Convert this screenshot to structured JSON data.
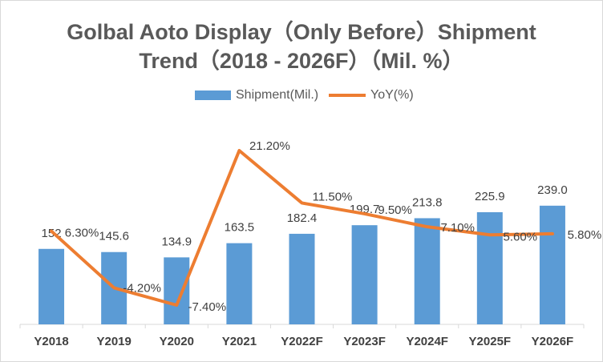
{
  "title_line1": "Golbal Aoto Display（Only Before）Shipment",
  "title_line2": "Trend（2018 - 2026F）（Mil. %）",
  "chart_data": {
    "type": "bar",
    "categories": [
      "Y2018",
      "Y2019",
      "Y2020",
      "Y2021",
      "Y2022F",
      "Y2023F",
      "Y2024F",
      "Y2025F",
      "Y2026F"
    ],
    "series": [
      {
        "name": "Shipment(Mil.)",
        "type": "bar",
        "color": "#5b9bd5",
        "values": [
          152,
          145.6,
          134.9,
          163.5,
          182.4,
          199.7,
          213.8,
          225.9,
          239.0
        ],
        "labels": [
          "152",
          "145.6",
          "134.9",
          "163.5",
          "182.4",
          "199.7",
          "213.8",
          "225.9",
          "239.0"
        ]
      },
      {
        "name": "YoY(%)",
        "type": "line",
        "color": "#ed7d31",
        "values": [
          6.3,
          -4.2,
          -7.4,
          21.2,
          11.5,
          9.5,
          7.1,
          5.6,
          5.8
        ],
        "labels": [
          "6.30%",
          "-4.20%",
          "-7.40%",
          "21.20%",
          "11.50%",
          "9.50%",
          "7.10%",
          "5.60%",
          "5.80%"
        ]
      }
    ],
    "ylim_bar": [
      0,
      300
    ],
    "ylim_line": [
      -10,
      25
    ],
    "legend": "top-center",
    "grid": false
  }
}
